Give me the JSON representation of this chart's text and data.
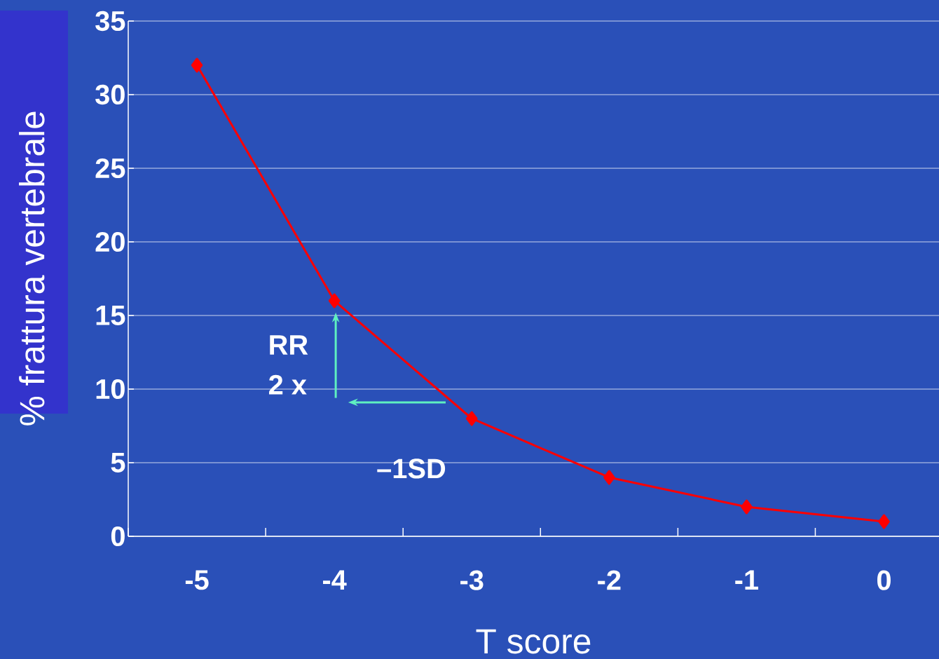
{
  "chart_data": {
    "type": "line",
    "xlabel": "T score",
    "ylabel": "% frattura vertebrale",
    "categories": [
      "-5",
      "-4",
      "-3",
      "-2",
      "-1",
      "0"
    ],
    "values": [
      32,
      16,
      8,
      4,
      2,
      1
    ],
    "color": "#ff0000",
    "marker": "diamond",
    "line_style": "solid",
    "ylim": [
      0,
      35
    ],
    "yticks": [
      0,
      5,
      10,
      15,
      20,
      25,
      30,
      35
    ],
    "grid": "y",
    "annotations": [
      "RR",
      "2 x",
      "–1SD"
    ]
  }
}
